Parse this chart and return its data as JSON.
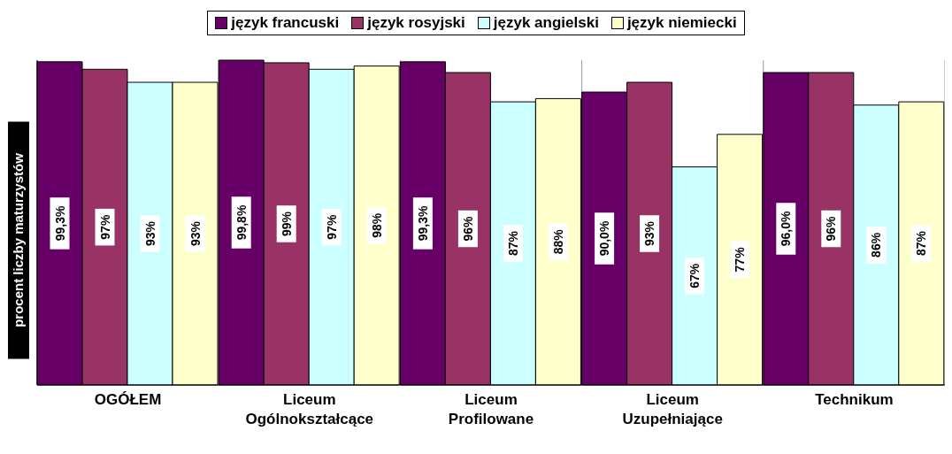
{
  "chart_data": {
    "type": "bar",
    "ylabel": "procent liczby maturzystów",
    "categories": [
      "OGÓŁEM",
      "Liceum Ogólnokształcące",
      "Liceum Profilowane",
      "Liceum Uzupełniające",
      "Technikum"
    ],
    "series": [
      {
        "name": "język francuski",
        "color": "#660066",
        "values": [
          99.3,
          99.8,
          99.3,
          90.0,
          96.0
        ],
        "value_labels": [
          "99,3%",
          "99,8%",
          "99,3%",
          "90,0%",
          "96,0%"
        ]
      },
      {
        "name": "język rosyjski",
        "color": "#993366",
        "values": [
          97,
          99,
          96,
          93,
          96
        ],
        "value_labels": [
          "97%",
          "99%",
          "96%",
          "93%",
          "96%"
        ]
      },
      {
        "name": "język angielski",
        "color": "#ccffff",
        "values": [
          93,
          97,
          87,
          67,
          86
        ],
        "value_labels": [
          "93%",
          "97%",
          "87%",
          "67%",
          "86%"
        ]
      },
      {
        "name": "język niemiecki",
        "color": "#ffffcc",
        "values": [
          93,
          98,
          88,
          77,
          87
        ],
        "value_labels": [
          "93%",
          "98%",
          "88%",
          "77%",
          "87%"
        ]
      }
    ],
    "grid": "x",
    "legend": "top"
  }
}
